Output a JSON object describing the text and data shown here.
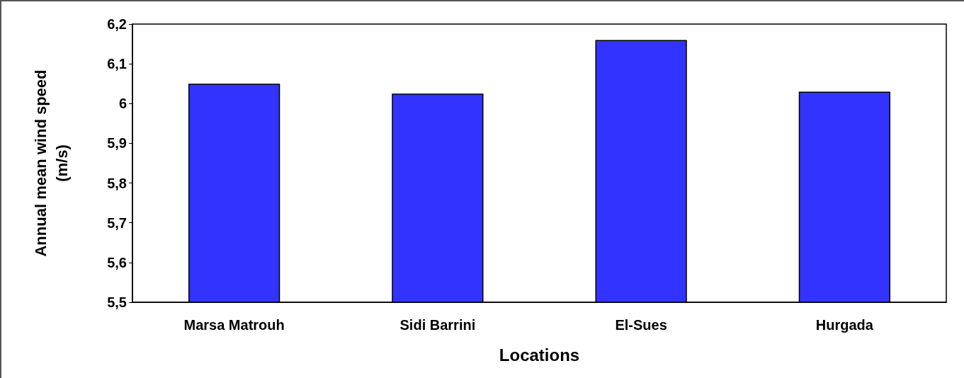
{
  "chart_data": {
    "type": "bar",
    "xlabel": "Locations",
    "ylabel": "Annual mean wind speed (m/s)",
    "categories": [
      "Marsa Matrouh",
      "Sidi Barrini",
      "El-Sues",
      "Hurgada"
    ],
    "values": [
      6.05,
      6.025,
      6.16,
      6.03
    ],
    "color": "#3333ff",
    "ylim": [
      5.5,
      6.2
    ],
    "yticks": [
      {
        "value": 5.5,
        "label": "5,5"
      },
      {
        "value": 5.6,
        "label": "5,6"
      },
      {
        "value": 5.7,
        "label": "5,7"
      },
      {
        "value": 5.8,
        "label": "5,8"
      },
      {
        "value": 5.9,
        "label": "5,9"
      },
      6,
      {
        "value": 6.1,
        "label": "6,1"
      },
      {
        "value": 6.2,
        "label": "6,2"
      }
    ],
    "grid": false
  }
}
